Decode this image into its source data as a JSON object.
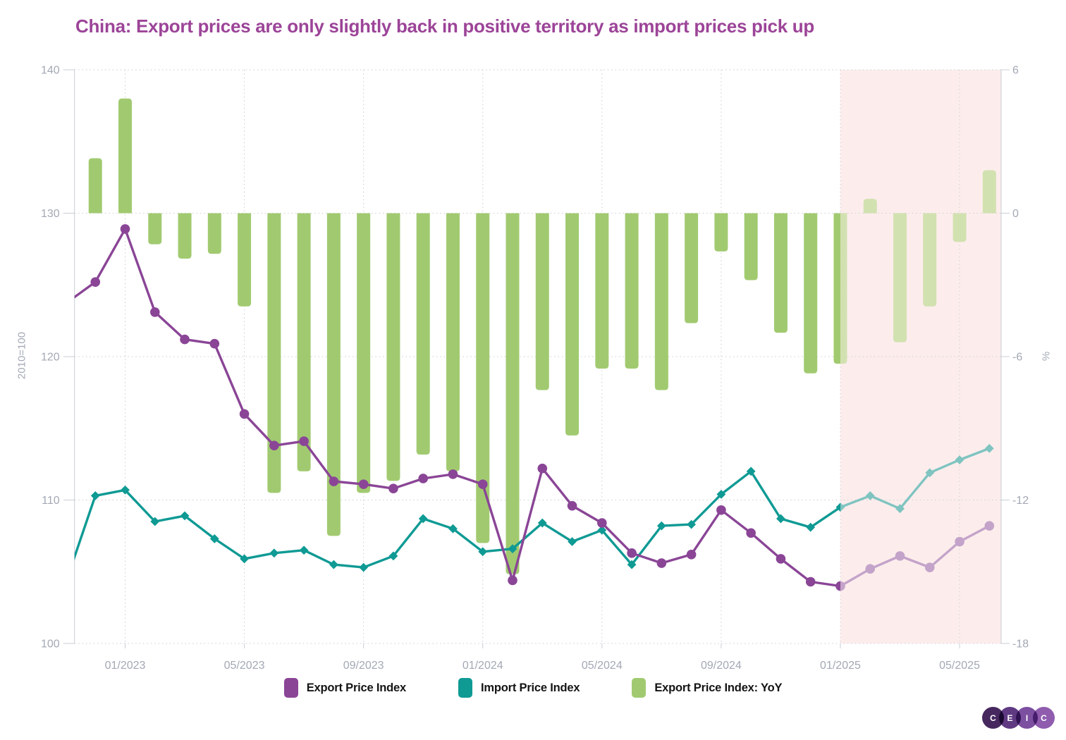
{
  "title": {
    "text": "China: Export prices are only slightly back in positive territory as import prices pick up",
    "color": "#9c4498"
  },
  "chart_data": {
    "type": "mixed-line-bar",
    "x_labels": [
      "11/2022",
      "12/2022",
      "01/2023",
      "02/2023",
      "03/2023",
      "04/2023",
      "05/2023",
      "06/2023",
      "07/2023",
      "08/2023",
      "09/2023",
      "10/2023",
      "11/2023",
      "12/2023",
      "01/2024",
      "02/2024",
      "03/2024",
      "04/2024",
      "05/2024",
      "06/2024",
      "07/2024",
      "08/2024",
      "09/2024",
      "10/2024",
      "11/2024",
      "12/2024",
      "01/2025",
      "02/2025",
      "03/2025",
      "04/2025",
      "05/2025",
      "06/2025"
    ],
    "x_ticks": [
      {
        "label": "01/2023",
        "month_index": 2
      },
      {
        "label": "05/2023",
        "month_index": 6
      },
      {
        "label": "09/2023",
        "month_index": 10
      },
      {
        "label": "01/2024",
        "month_index": 14
      },
      {
        "label": "05/2024",
        "month_index": 18
      },
      {
        "label": "09/2024",
        "month_index": 22
      },
      {
        "label": "01/2025",
        "month_index": 26
      },
      {
        "label": "05/2025",
        "month_index": 30
      }
    ],
    "left_axis": {
      "title": "2010=100",
      "min": 100,
      "max": 140,
      "ticks": [
        140,
        130,
        120,
        110,
        100
      ]
    },
    "right_axis": {
      "title": "%",
      "min": -18,
      "max": 6,
      "ticks": [
        6,
        0,
        -6,
        -12,
        -18
      ]
    },
    "grid": "dotted",
    "faded_from_index": 26,
    "highlight_region": {
      "from_label": "01/2025",
      "color": "#fcedec"
    },
    "series": [
      {
        "name": "Export Price Index",
        "type": "line",
        "marker": "circle",
        "axis": "left",
        "color": "#8a4596",
        "faded_color": "#c4a3ca",
        "values": [
          123.7,
          125.2,
          128.9,
          123.1,
          121.2,
          120.9,
          116.0,
          113.8,
          114.1,
          111.3,
          111.1,
          110.8,
          111.5,
          111.8,
          111.1,
          104.4,
          112.2,
          109.6,
          108.4,
          106.3,
          105.6,
          106.2,
          109.3,
          107.7,
          105.9,
          104.3,
          104.0,
          105.2,
          106.1,
          105.3,
          107.1,
          108.2
        ]
      },
      {
        "name": "Import Price Index",
        "type": "line",
        "marker": "diamond",
        "axis": "left",
        "color": "#0f9a94",
        "faded_color": "#7fc4c1",
        "values": [
          104.2,
          110.3,
          110.7,
          108.5,
          108.9,
          107.3,
          105.9,
          106.3,
          106.5,
          105.5,
          105.3,
          106.1,
          108.7,
          108.0,
          106.4,
          106.6,
          108.4,
          107.1,
          107.9,
          105.5,
          108.2,
          108.3,
          110.4,
          112.0,
          108.7,
          108.1,
          109.5,
          110.3,
          109.4,
          111.9,
          112.8,
          113.6
        ]
      },
      {
        "name": "Export Price Index: YoY",
        "type": "bar",
        "axis": "right",
        "color": "#a1ca70",
        "faded_color": "#d2e1b0",
        "values": [
          null,
          2.3,
          4.8,
          -1.3,
          -1.9,
          -1.7,
          -3.9,
          -11.7,
          -10.8,
          -13.5,
          -11.7,
          -11.2,
          -10.1,
          -10.8,
          -13.8,
          -15.1,
          -7.4,
          -9.3,
          -6.5,
          -6.5,
          -7.4,
          -4.6,
          -1.6,
          -2.8,
          -5.0,
          -6.7,
          -6.3,
          0.6,
          -5.4,
          -3.9,
          -1.2,
          1.8
        ]
      }
    ]
  },
  "legend": {
    "items": [
      {
        "label": "Export Price Index",
        "color": "#8a4596"
      },
      {
        "label": "Import Price Index",
        "color": "#0f9a94"
      },
      {
        "label": "Export Price Index: YoY",
        "color": "#a1ca70"
      }
    ]
  },
  "logo": {
    "letters": [
      "C",
      "E",
      "I",
      "C"
    ],
    "colors": [
      "#46285f",
      "#5f3a82",
      "#7c4fa0",
      "#8f5cae"
    ]
  }
}
